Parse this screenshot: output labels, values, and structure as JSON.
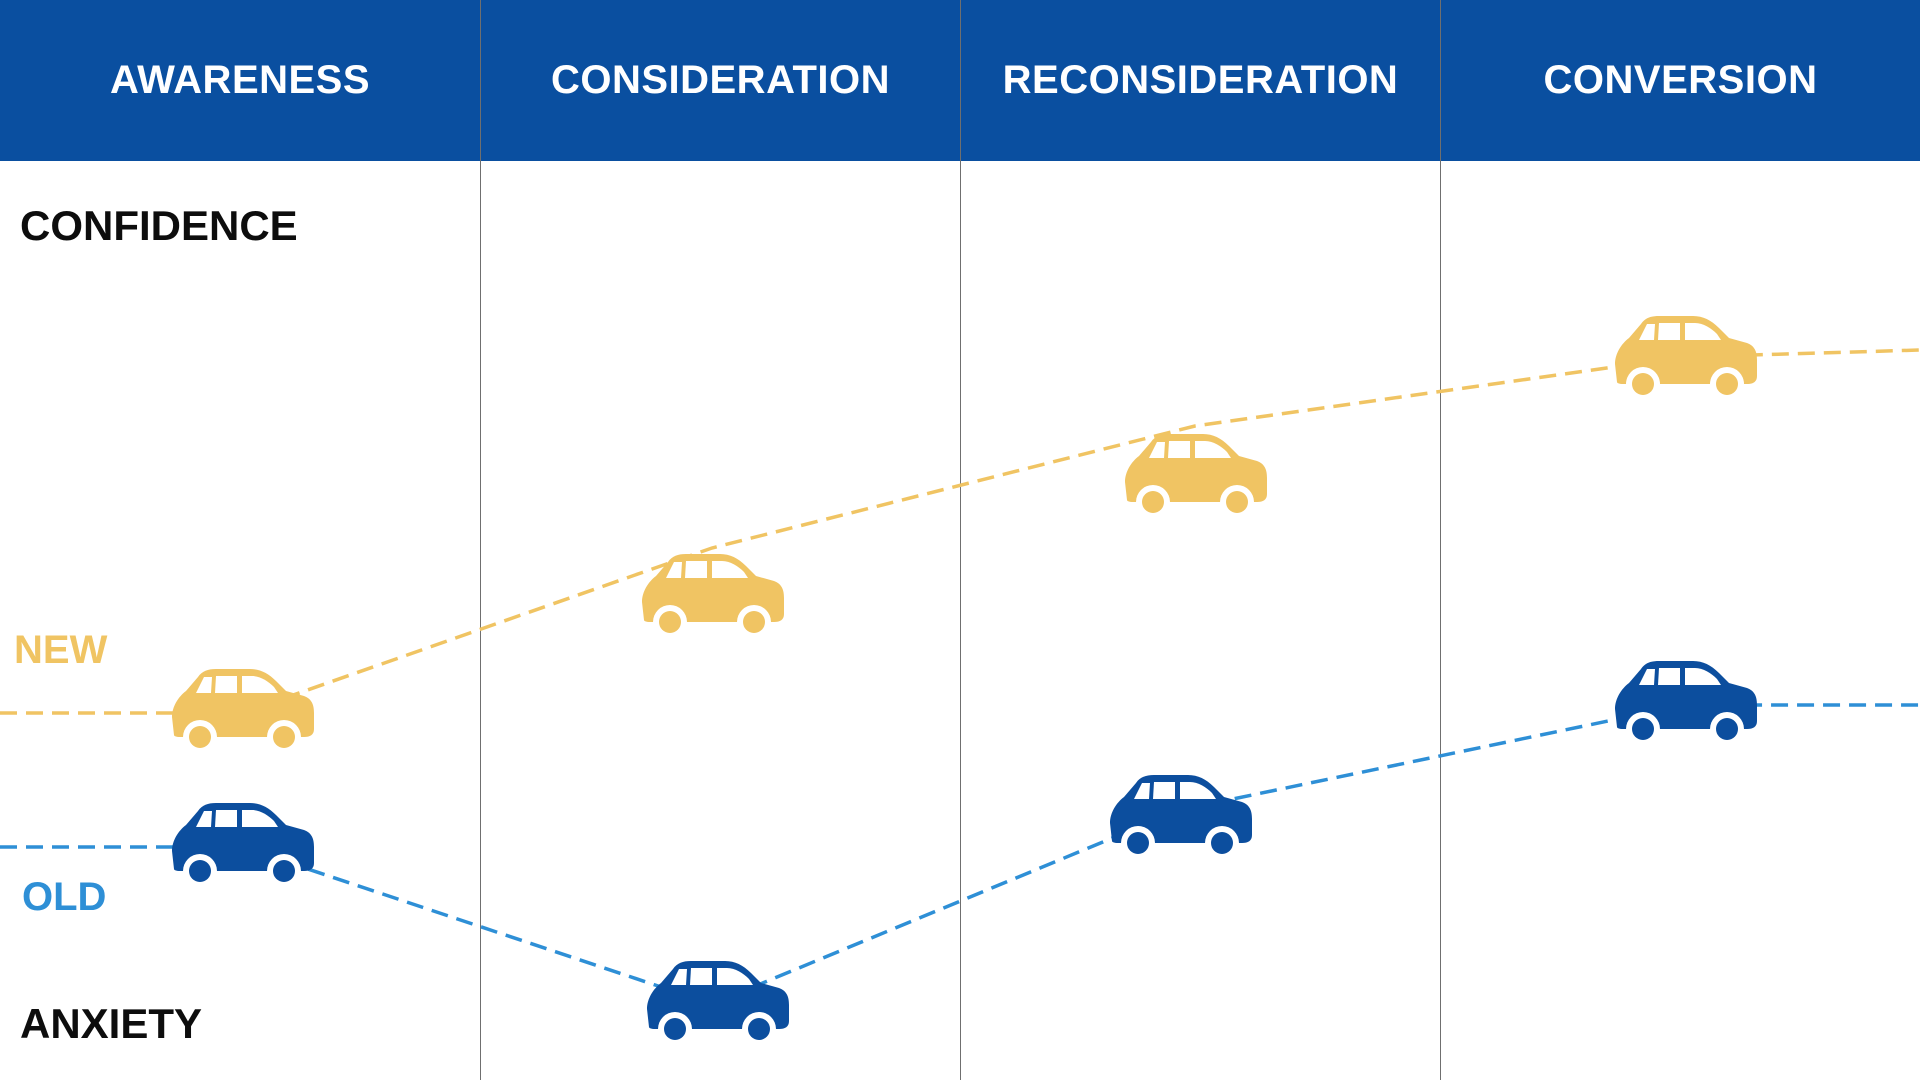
{
  "stages": [
    "AWARENESS",
    "CONSIDERATION",
    "RECONSIDERATION",
    "CONVERSION"
  ],
  "axis": {
    "top_label": "CONFIDENCE",
    "bottom_label": "ANXIETY"
  },
  "series": [
    {
      "name": "NEW",
      "color": "#f0c463",
      "icon": "car-icon"
    },
    {
      "name": "OLD",
      "color": "#2e8fd6",
      "car_color": "#0c4e9e",
      "icon": "car-icon"
    }
  ],
  "colors": {
    "header": "#0a4fa0",
    "header_text": "#ffffff",
    "divider": "#6f6f6f"
  }
}
